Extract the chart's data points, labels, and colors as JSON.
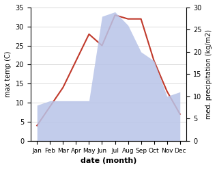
{
  "months": [
    "Jan",
    "Feb",
    "Mar",
    "Apr",
    "May",
    "Jun",
    "Jul",
    "Aug",
    "Sep",
    "Oct",
    "Nov",
    "Dec"
  ],
  "temp": [
    4,
    9,
    14,
    21,
    28,
    25,
    33,
    32,
    32,
    21,
    13,
    7
  ],
  "precip": [
    8,
    9,
    9,
    9,
    9,
    28,
    29,
    26,
    20,
    18,
    10,
    11
  ],
  "temp_ylim": [
    0,
    35
  ],
  "precip_ylim": [
    0,
    30
  ],
  "temp_yticks": [
    0,
    5,
    10,
    15,
    20,
    25,
    30,
    35
  ],
  "precip_yticks": [
    0,
    5,
    10,
    15,
    20,
    25,
    30
  ],
  "xlabel": "date (month)",
  "ylabel_left": "max temp (C)",
  "ylabel_right": "med. precipitation (kg/m2)",
  "fill_color": "#b8c4e8",
  "line_color": "#c0392b",
  "grid_color": "#cccccc"
}
